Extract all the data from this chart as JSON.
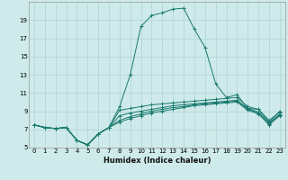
{
  "xlabel": "Humidex (Indice chaleur)",
  "bg_color": "#ceeaea",
  "line_color": "#1a7a6e",
  "grid_color": "#aed4d4",
  "x_values": [
    0,
    1,
    2,
    3,
    4,
    5,
    6,
    7,
    8,
    9,
    10,
    11,
    12,
    13,
    14,
    15,
    16,
    17,
    18,
    19,
    20,
    21,
    22,
    23
  ],
  "curves": [
    [
      7.5,
      7.2,
      7.1,
      7.2,
      5.8,
      5.3,
      6.5,
      7.2,
      9.1,
      9.3,
      9.5,
      9.7,
      9.8,
      9.9,
      10.0,
      10.1,
      10.2,
      10.3,
      10.4,
      10.5,
      9.5,
      9.2,
      8.0,
      8.9
    ],
    [
      7.5,
      7.2,
      7.1,
      7.2,
      5.8,
      5.3,
      6.5,
      7.2,
      8.5,
      8.8,
      9.0,
      9.2,
      9.4,
      9.6,
      9.7,
      9.8,
      9.9,
      10.0,
      10.1,
      10.2,
      9.3,
      8.9,
      7.7,
      8.7
    ],
    [
      7.5,
      7.2,
      7.1,
      7.2,
      5.8,
      5.3,
      6.5,
      7.2,
      8.0,
      8.4,
      8.7,
      9.0,
      9.2,
      9.4,
      9.5,
      9.7,
      9.8,
      9.9,
      10.0,
      10.1,
      9.2,
      8.8,
      7.6,
      8.6
    ],
    [
      7.5,
      7.2,
      7.1,
      7.2,
      5.8,
      5.3,
      6.5,
      7.2,
      7.8,
      8.2,
      8.5,
      8.8,
      9.0,
      9.2,
      9.4,
      9.6,
      9.7,
      9.8,
      9.9,
      10.0,
      9.1,
      8.7,
      7.5,
      8.5
    ],
    [
      7.5,
      7.2,
      7.1,
      7.2,
      5.8,
      5.3,
      6.5,
      7.2,
      9.5,
      13.0,
      18.3,
      19.5,
      19.8,
      20.2,
      20.3,
      18.0,
      16.0,
      12.0,
      10.5,
      10.8,
      9.3,
      9.2,
      7.8,
      9.0
    ]
  ],
  "ylim": [
    5,
    21
  ],
  "xlim": [
    -0.5,
    23.5
  ],
  "yticks": [
    5,
    7,
    9,
    11,
    13,
    15,
    17,
    19
  ],
  "xticks": [
    0,
    1,
    2,
    3,
    4,
    5,
    6,
    7,
    8,
    9,
    10,
    11,
    12,
    13,
    14,
    15,
    16,
    17,
    18,
    19,
    20,
    21,
    22,
    23
  ],
  "tick_fontsize": 5.0,
  "xlabel_fontsize": 6.0
}
